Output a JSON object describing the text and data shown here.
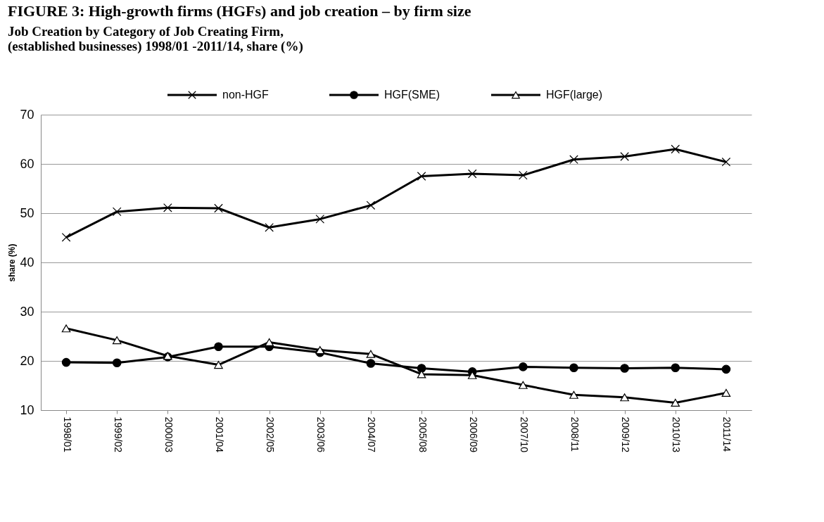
{
  "chart_data": {
    "type": "line",
    "title": "FIGURE 3: High-growth firms (HGFs) and job creation – by firm size",
    "subtitle": "Job Creation by Category of Job Creating Firm,\n(established businesses) 1998/01 -2011/14, share (%)",
    "ylabel": "share (%)",
    "categories": [
      "1998/01",
      "1999/02",
      "2000/03",
      "2001/04",
      "2002/05",
      "2003/06",
      "2004/07",
      "2005/08",
      "2006/09",
      "2007/10",
      "2008/11",
      "2009/12",
      "2010/13",
      "2011/14"
    ],
    "series": [
      {
        "name": "non-HGF",
        "color": "#000000",
        "marker": "cross",
        "values": [
          45.1,
          50.3,
          51.1,
          51.0,
          47.1,
          48.8,
          51.6,
          57.5,
          58.0,
          57.7,
          60.9,
          61.5,
          63.0,
          60.4
        ]
      },
      {
        "name": "HGF(SME)",
        "color": "#000000",
        "marker": "circle",
        "values": [
          19.7,
          19.6,
          20.8,
          22.9,
          22.9,
          21.7,
          19.5,
          18.5,
          17.8,
          18.8,
          18.6,
          18.5,
          18.6,
          18.3
        ]
      },
      {
        "name": "HGF(large)",
        "color": "#000000",
        "marker": "triangle",
        "values": [
          26.6,
          24.2,
          21.0,
          19.2,
          23.8,
          22.2,
          21.4,
          17.3,
          17.1,
          15.1,
          13.1,
          12.6,
          11.5,
          13.5
        ]
      }
    ],
    "ylim": [
      10,
      70
    ],
    "yticks": [
      10,
      20,
      30,
      40,
      50,
      60,
      70
    ],
    "grid": "y",
    "legend": "top",
    "line_style": "solid"
  }
}
